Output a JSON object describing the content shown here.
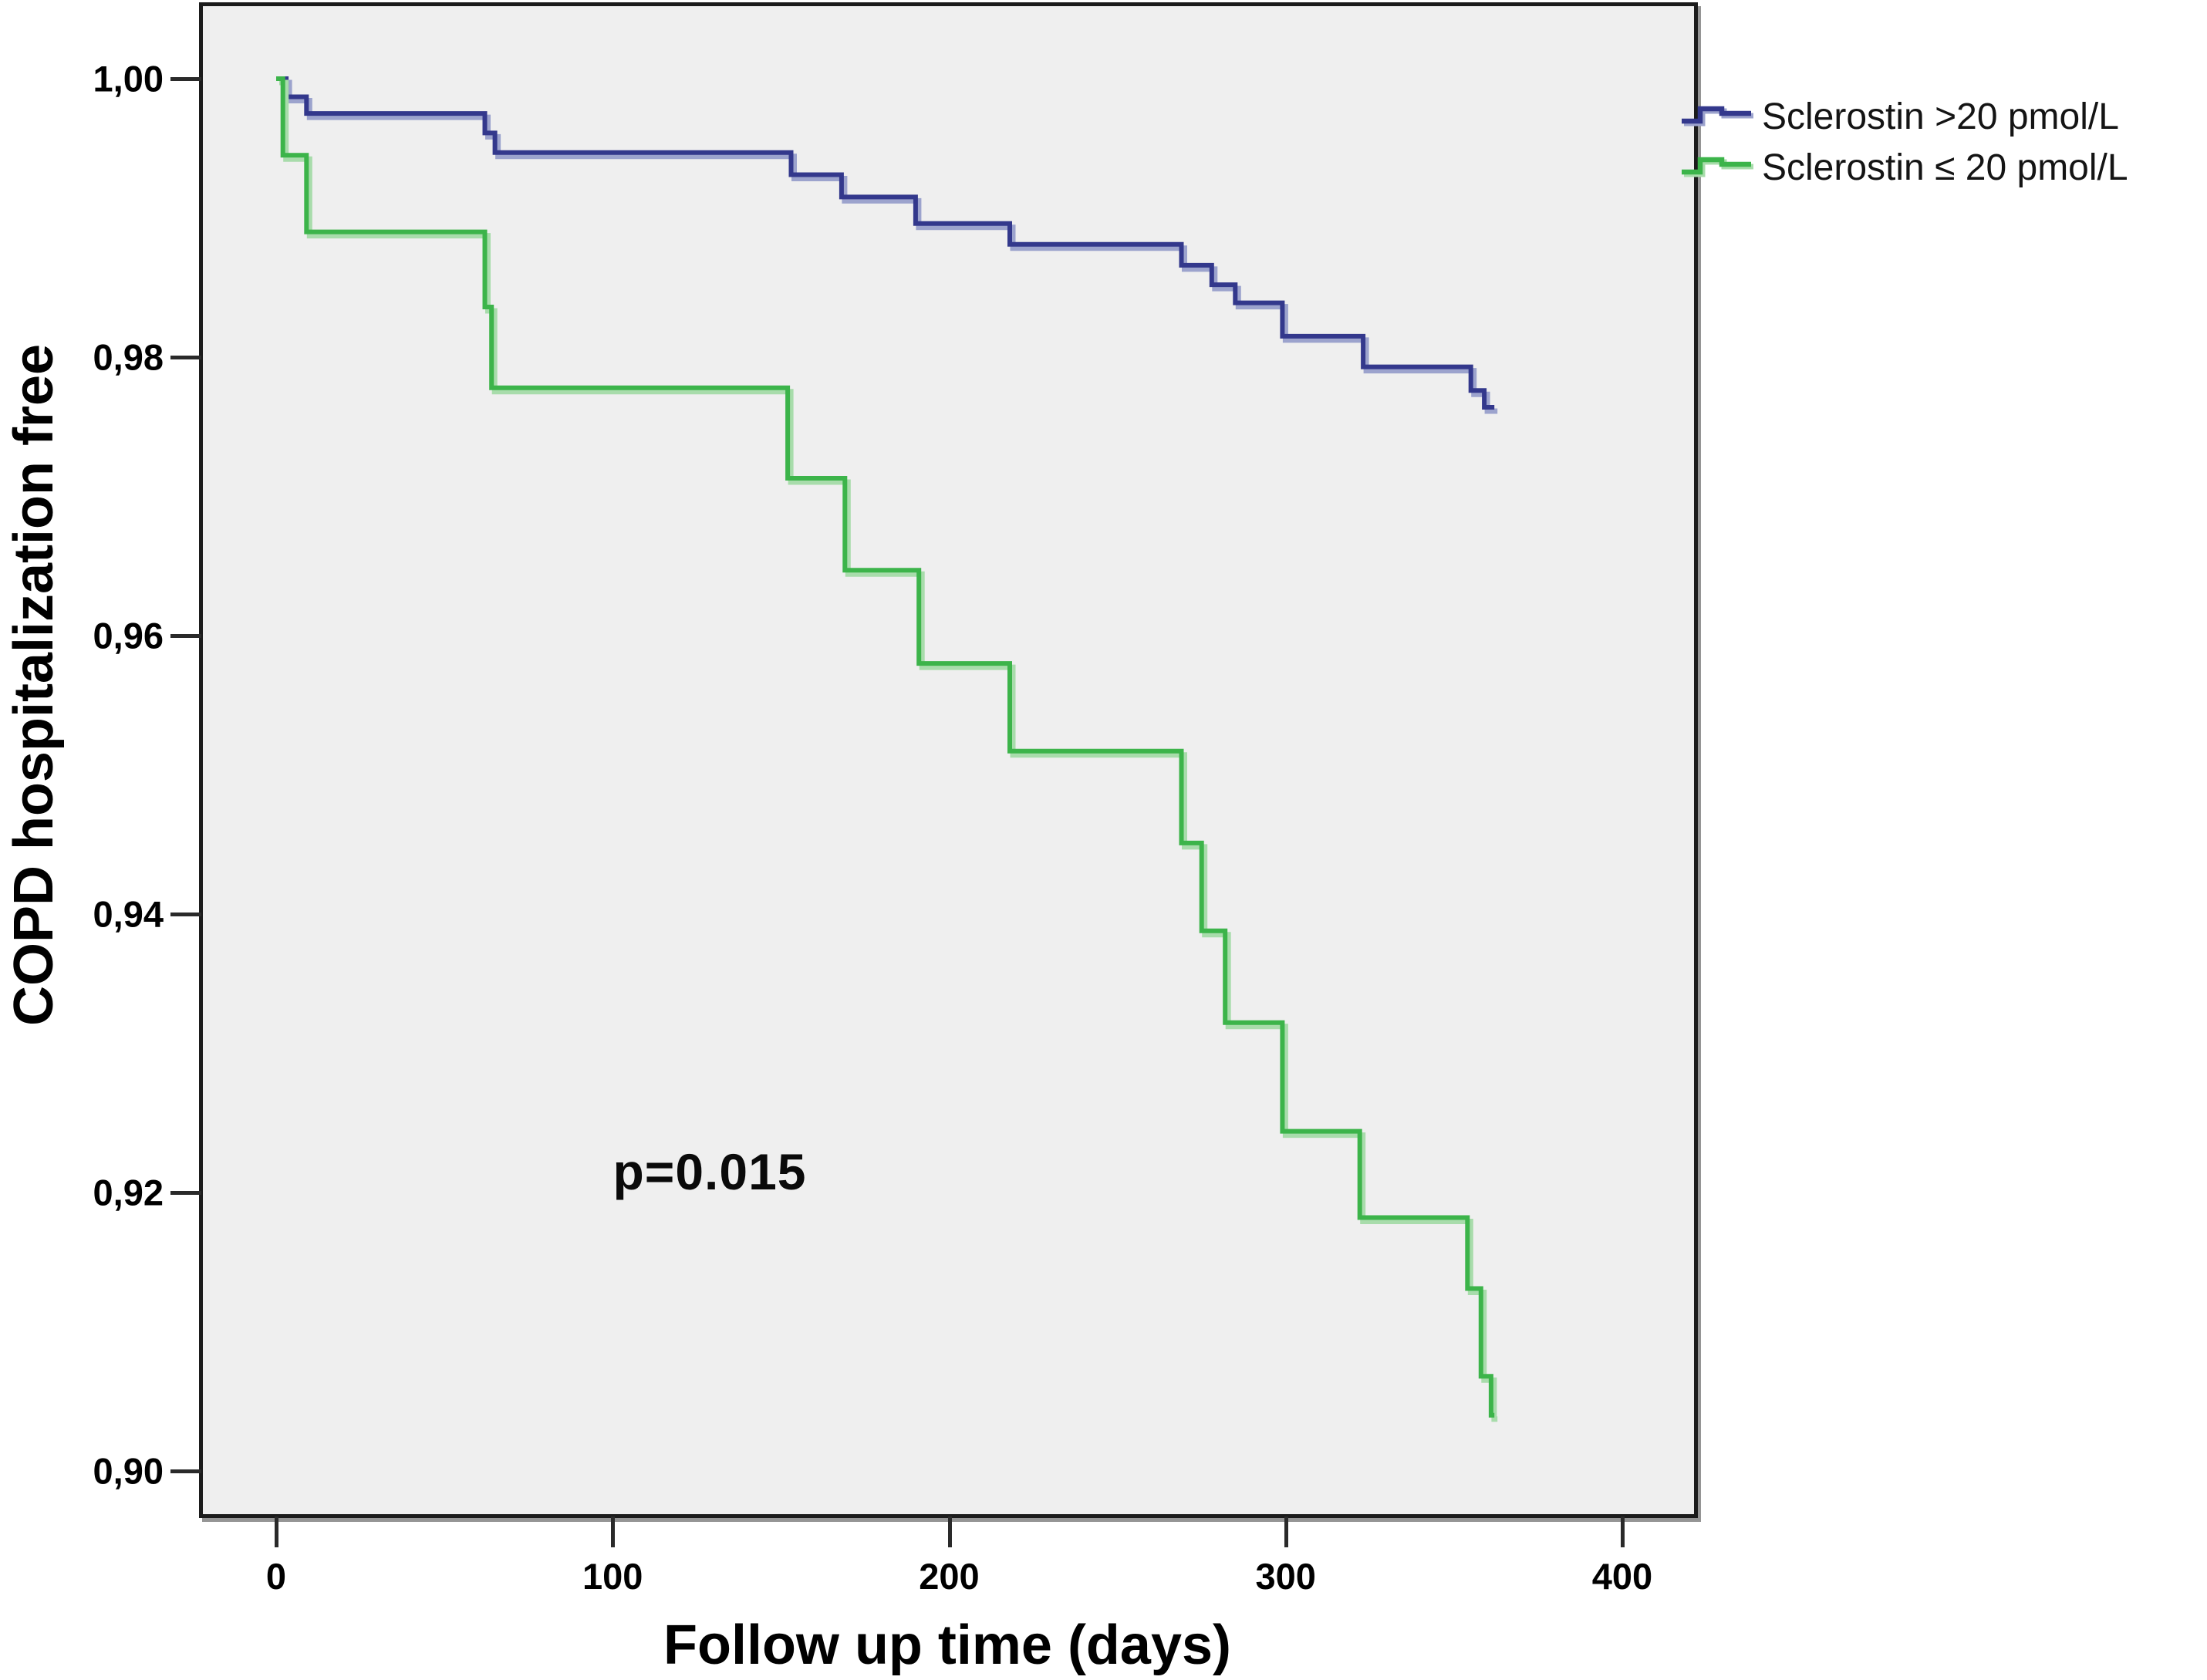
{
  "figure": {
    "background": "#ffffff",
    "plot_background": "#efefef",
    "border_color": "#1b1b1b"
  },
  "y_axis": {
    "title": "COPD hospitalization free",
    "ticks": [
      {
        "label": "1,00",
        "value": 1.0
      },
      {
        "label": "0,98",
        "value": 0.98
      },
      {
        "label": "0,96",
        "value": 0.96
      },
      {
        "label": "0,94",
        "value": 0.94
      },
      {
        "label": "0,92",
        "value": 0.92
      },
      {
        "label": "0,90",
        "value": 0.9
      }
    ]
  },
  "x_axis": {
    "title": "Follow up time (days)",
    "ticks": [
      {
        "label": "0",
        "value": 0
      },
      {
        "label": "100",
        "value": 100
      },
      {
        "label": "200",
        "value": 200
      },
      {
        "label": "300",
        "value": 300
      },
      {
        "label": "400",
        "value": 400
      }
    ]
  },
  "annotation": {
    "p_value": "p=0.015"
  },
  "legend": [
    {
      "label": "Sclerostin >20 pmol/L",
      "color": "#33388c",
      "shadow": "#9ca3cd"
    },
    {
      "label": "Sclerostin ≤ 20 pmol/L",
      "color": "#3cb44a",
      "shadow": "#a8dcab"
    }
  ],
  "chart_data": {
    "type": "line",
    "subtype": "kaplan-meier-step",
    "title": "",
    "xlabel": "Follow up time (days)",
    "ylabel": "COPD hospitalization free",
    "xlim": [
      -22,
      421
    ],
    "ylim": [
      0.895,
      1.005
    ],
    "x_ticks": [
      0,
      100,
      200,
      300,
      400
    ],
    "y_ticks": [
      1.0,
      0.98,
      0.96,
      0.94,
      0.92,
      0.9
    ],
    "grid": false,
    "legend_position": "top-right-outside",
    "annotations": [
      {
        "text": "p=0.015",
        "x": 129,
        "y": 0.9215
      }
    ],
    "series": [
      {
        "name": "Sclerostin >20 pmol/L",
        "color": "#33388c",
        "points": [
          [
            0,
            1.0
          ],
          [
            3,
            0.9987
          ],
          [
            9,
            0.9975
          ],
          [
            62,
            0.9961
          ],
          [
            65,
            0.9947
          ],
          [
            153,
            0.9931
          ],
          [
            168,
            0.9915
          ],
          [
            190,
            0.9896
          ],
          [
            218,
            0.9881
          ],
          [
            269,
            0.9866
          ],
          [
            278,
            0.9852
          ],
          [
            285,
            0.9839
          ],
          [
            299,
            0.9815
          ],
          [
            323,
            0.9793
          ],
          [
            355,
            0.9776
          ],
          [
            359,
            0.9764
          ],
          [
            362,
            0.9764
          ]
        ]
      },
      {
        "name": "Sclerostin ≤ 20 pmol/L",
        "color": "#3cb44a",
        "points": [
          [
            0,
            1.0
          ],
          [
            2,
            0.9945
          ],
          [
            9,
            0.989
          ],
          [
            62,
            0.9836
          ],
          [
            64,
            0.9778
          ],
          [
            152,
            0.9713
          ],
          [
            169,
            0.9647
          ],
          [
            191,
            0.958
          ],
          [
            218,
            0.9517
          ],
          [
            269,
            0.9451
          ],
          [
            275,
            0.9388
          ],
          [
            282,
            0.9322
          ],
          [
            299,
            0.9244
          ],
          [
            322,
            0.9182
          ],
          [
            354,
            0.9131
          ],
          [
            358,
            0.9068
          ],
          [
            361,
            0.904
          ],
          [
            362,
            0.904
          ]
        ]
      }
    ]
  }
}
